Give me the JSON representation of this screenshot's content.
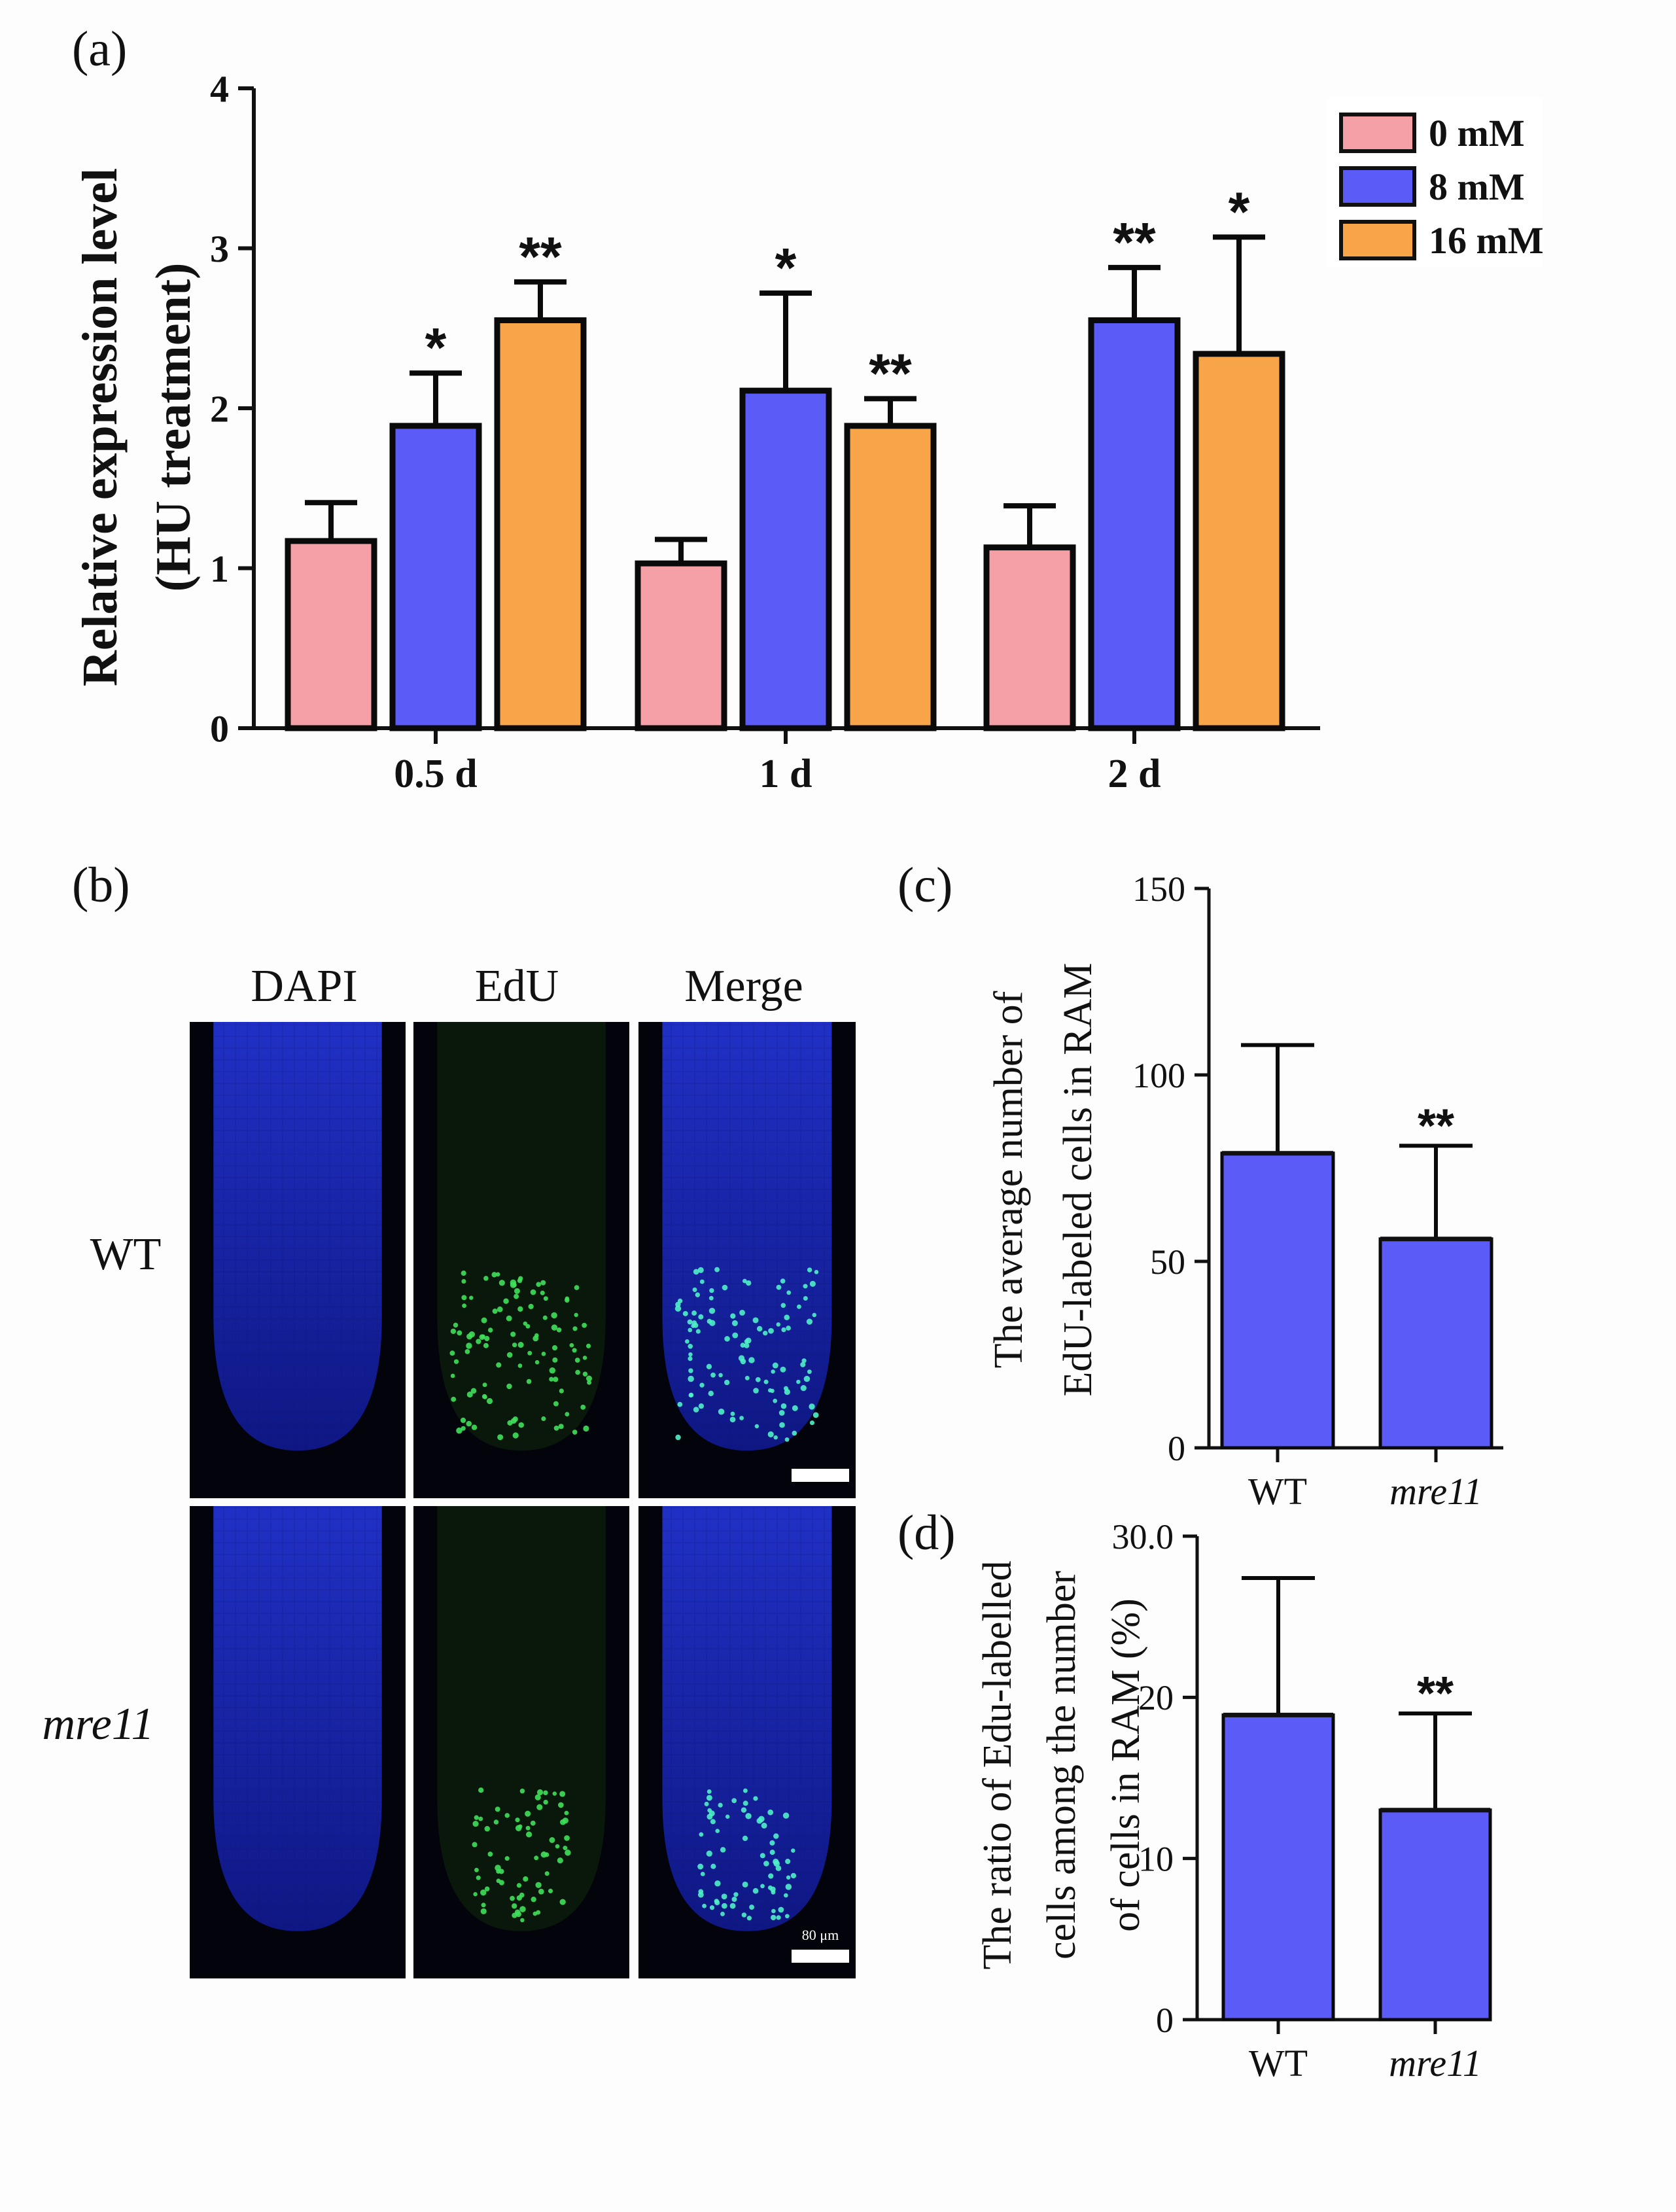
{
  "colors": {
    "c0": "#f5a0a6",
    "c8": "#5b5bf7",
    "c16": "#f8a54a",
    "blue": "#5b5bf7"
  },
  "panels": {
    "a": "(a)",
    "b": "(b)",
    "c": "(c)",
    "d": "(d)"
  },
  "micrograph": {
    "columns": [
      "DAPI",
      "EdU",
      "Merge"
    ],
    "rows": [
      "WT",
      "mre11"
    ],
    "scale_label": "80 μm"
  },
  "chart_data": [
    {
      "id": "a",
      "type": "bar",
      "title": "",
      "ylabel_line1": "Relative expression level",
      "ylabel_line2": "(HU treatment)",
      "xlabel": "",
      "ylim": [
        0,
        4
      ],
      "yticks": [
        "0",
        "1",
        "2",
        "3",
        "4"
      ],
      "categories": [
        "0.5 d",
        "1 d",
        "2 d"
      ],
      "legend_position": "top-right",
      "series": [
        {
          "name": "0 mM",
          "color": "#f5a0a6",
          "values": [
            1.17,
            1.03,
            1.13
          ],
          "errors": [
            0.24,
            0.15,
            0.26
          ],
          "sig": [
            "",
            "",
            ""
          ]
        },
        {
          "name": "8 mM",
          "color": "#5b5bf7",
          "values": [
            1.89,
            2.11,
            2.55
          ],
          "errors": [
            0.33,
            0.61,
            0.33
          ],
          "sig": [
            "*",
            "*",
            "**"
          ]
        },
        {
          "name": "16 mM",
          "color": "#f8a54a",
          "values": [
            2.55,
            1.89,
            2.34
          ],
          "errors": [
            0.24,
            0.17,
            0.73
          ],
          "sig": [
            "**",
            "**",
            "*"
          ]
        }
      ]
    },
    {
      "id": "c",
      "type": "bar",
      "title": "",
      "ylabel_line1": "The average number of",
      "ylabel_line2": "EdU-labeled  cells in RAM",
      "xlabel": "",
      "ylim": [
        0,
        150
      ],
      "yticks": [
        "0",
        "50",
        "100",
        "150"
      ],
      "categories": [
        "WT",
        "mre11"
      ],
      "values": [
        79,
        56
      ],
      "errors": [
        29,
        25
      ],
      "sig": [
        "",
        "**"
      ]
    },
    {
      "id": "d",
      "type": "bar",
      "title": "",
      "ylabel_line1": "The ratio of Edu-labelled",
      "ylabel_line2": "cells among the number",
      "ylabel_line3": "of cells in RAM (%)",
      "xlabel": "",
      "ylim": [
        0,
        30
      ],
      "yticks": [
        "0",
        "10",
        "20",
        "30.0"
      ],
      "categories": [
        "WT",
        "mre11"
      ],
      "values": [
        18.9,
        13
      ],
      "errors": [
        8.5,
        6
      ],
      "sig": [
        "",
        "**"
      ]
    }
  ]
}
